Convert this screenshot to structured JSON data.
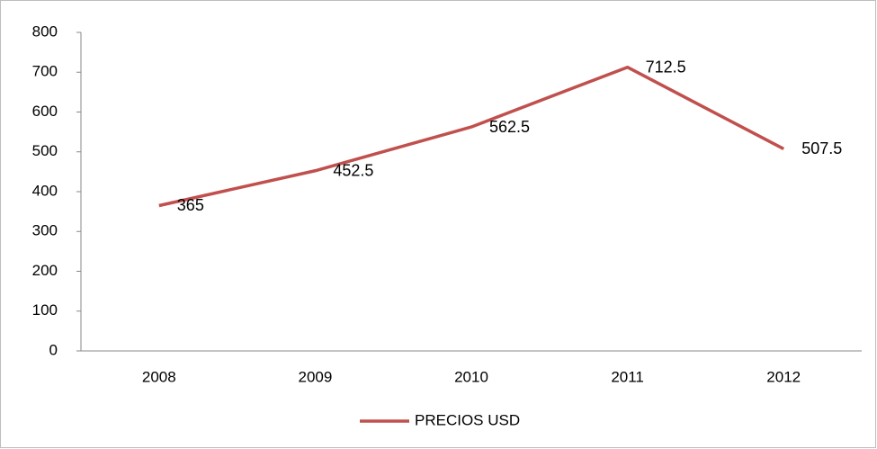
{
  "chart_data": {
    "type": "line",
    "categories": [
      "2008",
      "2009",
      "2010",
      "2011",
      "2012"
    ],
    "series": [
      {
        "name": "PRECIOS USD",
        "color": "#c0504d",
        "values": [
          365,
          452.5,
          562.5,
          712.5,
          507.5
        ]
      }
    ],
    "ylim": [
      0,
      800
    ],
    "yticks": [
      0,
      100,
      200,
      300,
      400,
      500,
      600,
      700,
      800
    ],
    "grid": false,
    "legend": "bottom"
  }
}
